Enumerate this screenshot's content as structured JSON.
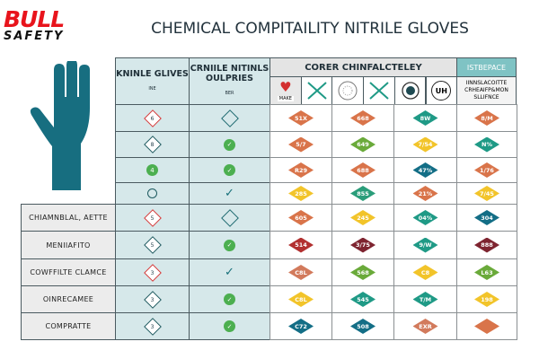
{
  "title": "CHEMICAL COMPITAILITY NITRILE GLOVES",
  "colors": {
    "orange": "#d9744a",
    "green": "#6aaa3a",
    "teal": "#1f9a86",
    "yellow": "#f2c42a",
    "darkteal": "#136e86",
    "red": "#b23030",
    "maroon": "#7e2430",
    "salmon": "#d27a5c",
    "tealgreen": "#2a9d7a",
    "accent": "#7fc3c4"
  },
  "left_headers": [
    {
      "title": "KNINLE GLIVES",
      "sub": "INE"
    },
    {
      "title": "CRNIILE NITINLS OULPRIES",
      "sub": "BER"
    }
  ],
  "right_header": {
    "main": "CORER CHINFALCTELEY",
    "side": "ISTBEPACE",
    "side_sub": "IINNSLACOITTE CRHEAIFP&MON SLLIFNCE",
    "icon_label": "MAKE",
    "icon_text": "UH"
  },
  "row_labels": [
    "",
    "",
    "",
    "",
    "CHIAMNBLAL, AETTE",
    "MENIIAFITO",
    "COWFFILTE CLAMCE",
    "OINRECAMEE",
    "COMPRATTE"
  ],
  "left_cells": [
    [
      {
        "t": "rdia",
        "v": "6"
      },
      {
        "t": "odia",
        "v": ""
      }
    ],
    [
      {
        "t": "tdia",
        "v": "8"
      },
      {
        "t": "gc",
        "v": "✓"
      }
    ],
    [
      {
        "t": "gc",
        "v": "4"
      },
      {
        "t": "gc",
        "v": "✓"
      }
    ],
    [
      {
        "t": "oc",
        "v": ""
      },
      {
        "t": "chk",
        "v": "✓"
      }
    ],
    [
      {
        "t": "rdia",
        "v": "5"
      },
      {
        "t": "odia",
        "v": ""
      }
    ],
    [
      {
        "t": "tdia",
        "v": "5"
      },
      {
        "t": "gc",
        "v": "✓"
      }
    ],
    [
      {
        "t": "rdia",
        "v": "3"
      },
      {
        "t": "chk",
        "v": "✓"
      }
    ],
    [
      {
        "t": "tdia",
        "v": "3"
      },
      {
        "t": "gc",
        "v": "✓"
      }
    ],
    [
      {
        "t": "tdia",
        "v": "3"
      },
      {
        "t": "gc",
        "v": "✓"
      }
    ]
  ],
  "right_cells": [
    [
      [
        "51X",
        "orange"
      ],
      [
        "668",
        "orange"
      ],
      [
        "8W",
        "teal"
      ],
      [
        "8/M",
        "orange"
      ]
    ],
    [
      [
        "5/7",
        "orange"
      ],
      [
        "649",
        "green"
      ],
      [
        "7/54",
        "yellow"
      ],
      [
        "N%",
        "teal"
      ]
    ],
    [
      [
        "R29",
        "orange"
      ],
      [
        "688",
        "orange"
      ],
      [
        "47%",
        "darkteal"
      ],
      [
        "1/76",
        "orange"
      ]
    ],
    [
      [
        "285",
        "yellow"
      ],
      [
        "855",
        "tealgreen"
      ],
      [
        "21%",
        "orange"
      ],
      [
        "7/45",
        "yellow"
      ]
    ],
    [
      [
        "605",
        "orange"
      ],
      [
        "245",
        "yellow"
      ],
      [
        "04%",
        "teal"
      ],
      [
        "304",
        "darkteal"
      ]
    ],
    [
      [
        "514",
        "red"
      ],
      [
        "3/75",
        "maroon"
      ],
      [
        "9/W",
        "teal"
      ],
      [
        "888",
        "maroon"
      ]
    ],
    [
      [
        "C8L",
        "salmon"
      ],
      [
        "568",
        "green"
      ],
      [
        "C8",
        "yellow"
      ],
      [
        "L63",
        "green"
      ]
    ],
    [
      [
        "C8L",
        "yellow"
      ],
      [
        "545",
        "teal"
      ],
      [
        "T/M",
        "teal"
      ],
      [
        "198",
        "yellow"
      ]
    ],
    [
      [
        "C72",
        "darkteal"
      ],
      [
        "508",
        "darkteal"
      ],
      [
        "EXR",
        "salmon"
      ],
      [
        "",
        "orange"
      ]
    ]
  ],
  "logo": {
    "brand": "BULL",
    "tag": "SAFETY"
  }
}
